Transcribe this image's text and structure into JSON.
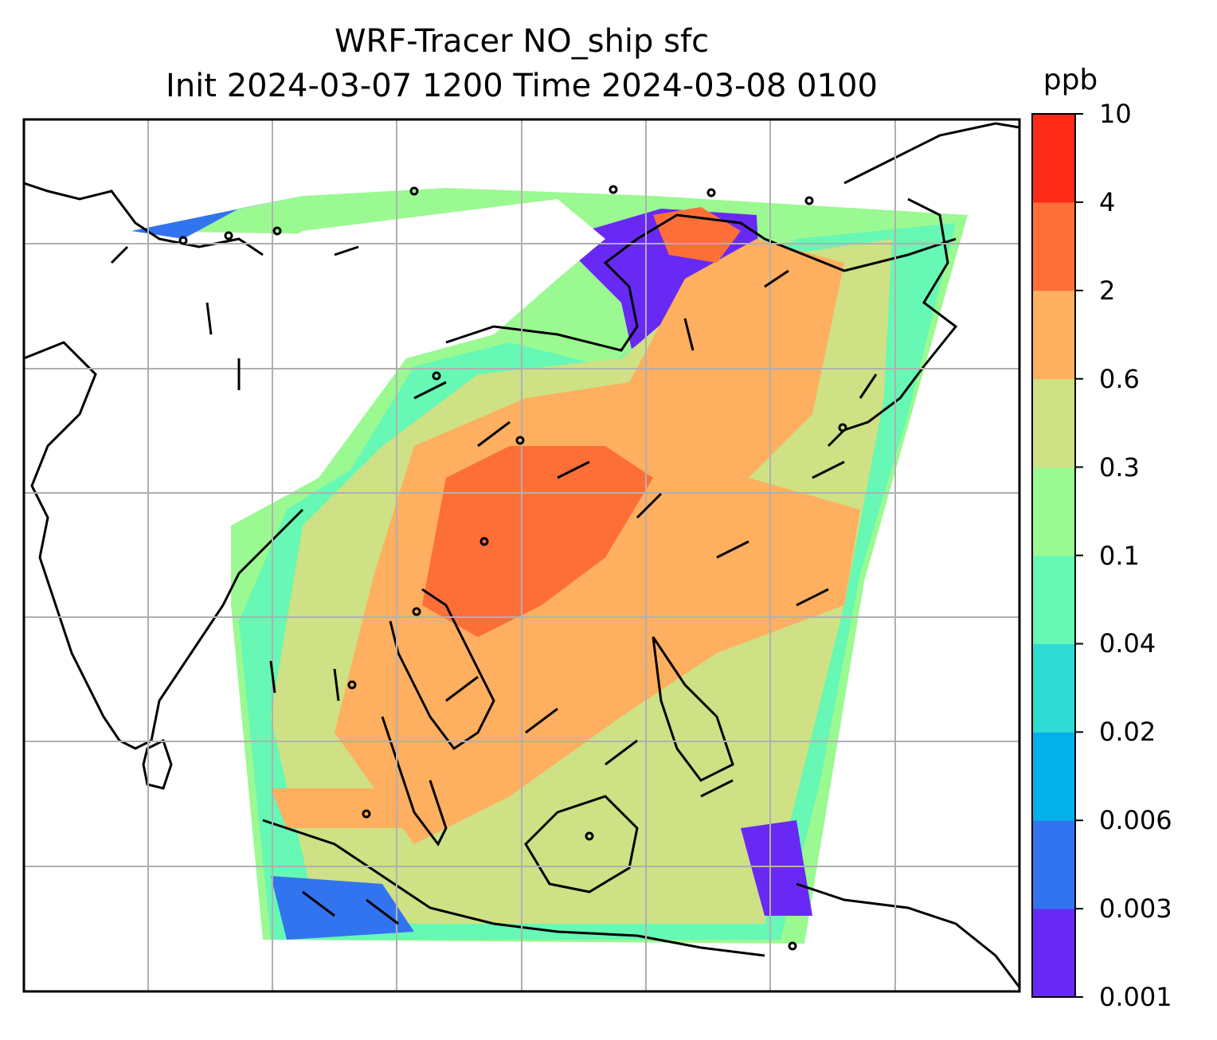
{
  "title": {
    "line1": "WRF-Tracer NO_ship sfc",
    "line2": "Init 2024-03-07 1200 Time 2024-03-08 0100"
  },
  "colorbar": {
    "unit": "ppb",
    "levels": [
      "0.001",
      "0.003",
      "0.006",
      "0.02",
      "0.04",
      "0.1",
      "0.3",
      "0.6",
      "2",
      "4",
      "10"
    ],
    "colors": [
      "#6929f5",
      "#3273f0",
      "#04b0ea",
      "#2fdcd4",
      "#66f8b4",
      "#9bf992",
      "#cee184",
      "#feaf5f",
      "#fe6f38",
      "#fe2a18"
    ]
  },
  "map": {
    "gridlines": true,
    "features": [
      "coastlines",
      "country-borders",
      "wind-barbs",
      "shaded-concentration"
    ]
  }
}
